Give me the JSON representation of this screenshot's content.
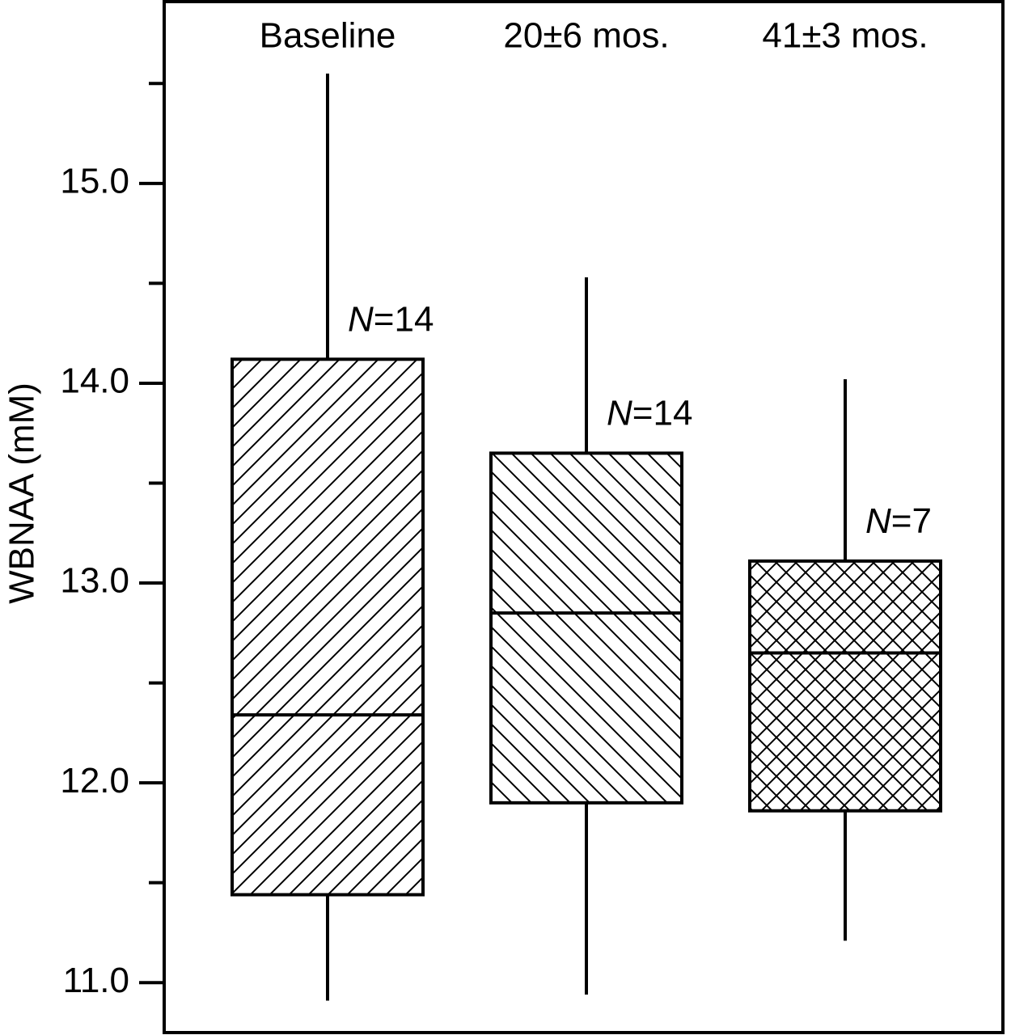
{
  "chart_data": {
    "type": "box",
    "y_label": "WBNAA (mM)",
    "categories": [
      "Baseline",
      "20±6 mos.",
      "41±3 mos."
    ],
    "boxes": [
      {
        "min": 10.91,
        "q1": 11.44,
        "median": 12.34,
        "q3": 14.12,
        "max": 15.55,
        "hatch": "forward",
        "n_label": {
          "italic": "N",
          "text": "=14"
        }
      },
      {
        "min": 10.94,
        "q1": 11.9,
        "median": 12.85,
        "q3": 13.65,
        "max": 14.53,
        "hatch": "backward",
        "n_label": {
          "italic": "N",
          "text": "=14"
        }
      },
      {
        "min": 11.21,
        "q1": 11.86,
        "median": 12.65,
        "q3": 13.11,
        "max": 14.02,
        "hatch": "cross",
        "n_label": {
          "italic": "N",
          "text": "=7"
        }
      }
    ],
    "ylim": [
      10.75,
      15.91
    ],
    "yticks": [
      {
        "value": 11,
        "label": "11.0"
      },
      {
        "value": 12,
        "label": "12.0"
      },
      {
        "value": 13,
        "label": "13.0"
      },
      {
        "value": 14,
        "label": "14.0"
      },
      {
        "value": 15,
        "label": "15.0"
      }
    ],
    "minor_yticks": [
      11.5,
      12.5,
      13.5,
      14.5,
      15.5
    ],
    "color": "#000000"
  }
}
